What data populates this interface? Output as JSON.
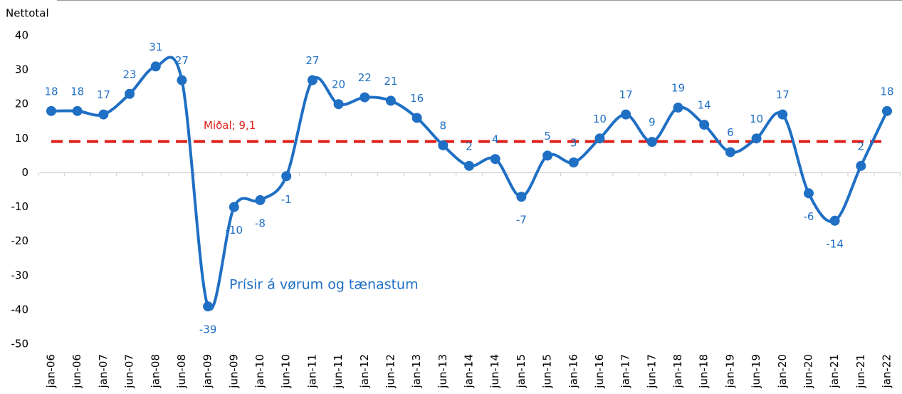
{
  "chart_data": {
    "type": "line",
    "y_label": "Nettotal",
    "categories": [
      "jan-06",
      "jun-06",
      "jan-07",
      "jun-07",
      "jan-08",
      "jun-08",
      "jan-09",
      "jun-09",
      "jan-10",
      "jun-10",
      "jan-11",
      "jun-11",
      "jan-12",
      "jun-12",
      "jan-13",
      "jun-13",
      "jan-14",
      "jun-14",
      "jan-15",
      "jun-15",
      "jan-16",
      "jun-16",
      "jan-17",
      "jun-17",
      "jan-18",
      "jun-18",
      "jan-19",
      "jun-19",
      "jan-20",
      "jun-20",
      "jan-21",
      "jun-21",
      "jan-22"
    ],
    "series": [
      {
        "name": "Prísir á vørum og tænastum",
        "color": "#1f6fc4",
        "values": [
          18,
          18,
          17,
          23,
          31,
          27,
          -39,
          -10,
          -8,
          -1,
          27,
          20,
          22,
          21,
          16,
          8,
          2,
          4,
          -7,
          5,
          3,
          10,
          17,
          9,
          19,
          14,
          6,
          10,
          17,
          -6,
          -14,
          2,
          18
        ]
      }
    ],
    "mean": {
      "value": 9.1,
      "label": "Miðal; 9,1",
      "color": "#e0201b"
    },
    "ylim": [
      -50,
      40
    ],
    "yticks": [
      -50,
      -40,
      -30,
      -20,
      -10,
      0,
      10,
      20,
      30,
      40
    ],
    "grid": false
  }
}
